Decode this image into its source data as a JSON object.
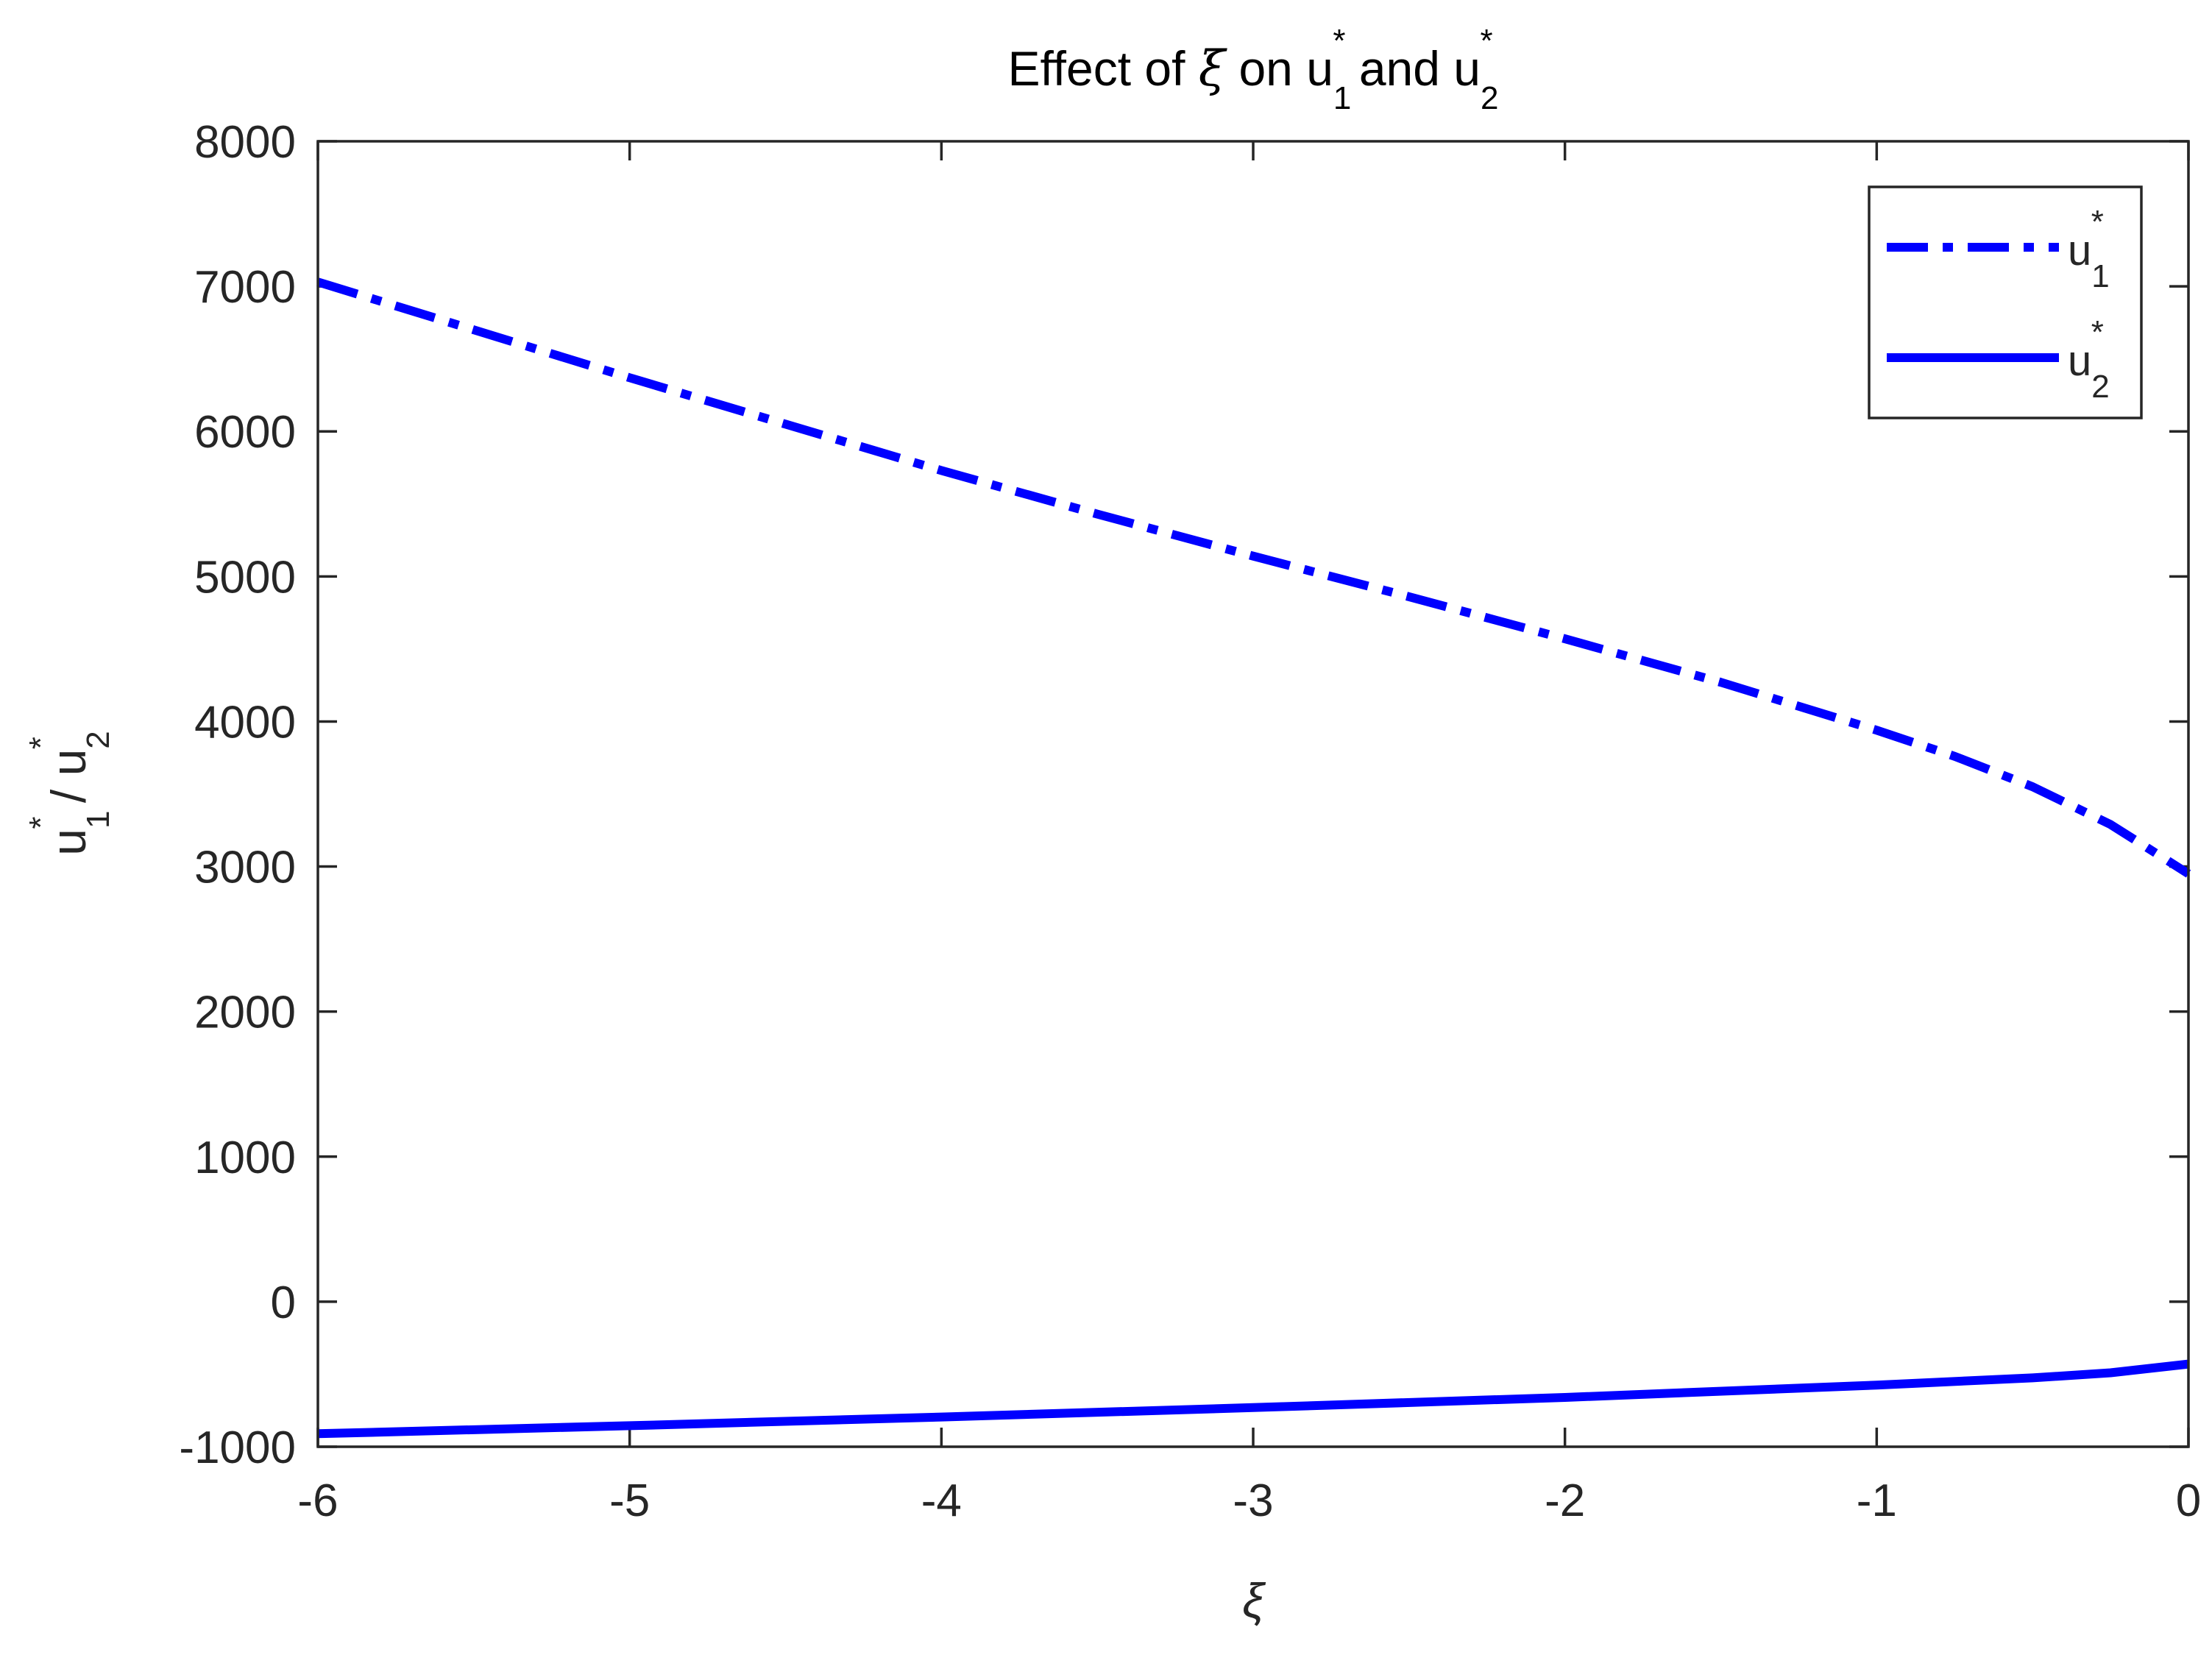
{
  "chart_data": {
    "type": "line",
    "title": {
      "prefix": "Effect of ",
      "symbol": "ξ",
      "mid": " on u",
      "sub1": "1",
      "sup1": "*",
      "conj": " and u",
      "sub2": "2",
      "sup2": "*"
    },
    "xlabel": "ξ",
    "ylabel": {
      "base1": "u",
      "sub1": "1",
      "sup1": "*",
      "sep": " / u",
      "sub2": "2",
      "sup2": "*"
    },
    "xlim": [
      -6,
      0
    ],
    "ylim": [
      -1000,
      8000
    ],
    "xticks": [
      -6,
      -5,
      -4,
      -3,
      -2,
      -1,
      0
    ],
    "xtick_labels": [
      "-6",
      "-5",
      "-4",
      "-3",
      "-2",
      "-1",
      "0"
    ],
    "yticks": [
      -1000,
      0,
      1000,
      2000,
      3000,
      4000,
      5000,
      6000,
      7000,
      8000
    ],
    "ytick_labels": [
      "-1000",
      "0",
      "1000",
      "2000",
      "3000",
      "4000",
      "5000",
      "6000",
      "7000",
      "8000"
    ],
    "grid": false,
    "legend_position": "top-right",
    "series": [
      {
        "name": "u1*",
        "legend": {
          "base": "u",
          "sub": "1",
          "sup": "*"
        },
        "color": "#0000ff",
        "style": "dash-dot",
        "x": [
          -6,
          -5.5,
          -5,
          -4.5,
          -4,
          -3.5,
          -3,
          -2.5,
          -2,
          -1.5,
          -1,
          -0.75,
          -0.5,
          -0.25,
          0
        ],
        "y": [
          7030,
          6700,
          6370,
          6050,
          5730,
          5430,
          5140,
          4860,
          4570,
          4270,
          3940,
          3760,
          3550,
          3290,
          2950
        ]
      },
      {
        "name": "u2*",
        "legend": {
          "base": "u",
          "sub": "2",
          "sup": "*"
        },
        "color": "#0000ff",
        "style": "solid",
        "x": [
          -6,
          -5,
          -4,
          -3,
          -2,
          -1,
          -0.5,
          -0.25,
          0
        ],
        "y": [
          -910,
          -855,
          -795,
          -730,
          -660,
          -575,
          -525,
          -490,
          -430
        ]
      }
    ]
  }
}
